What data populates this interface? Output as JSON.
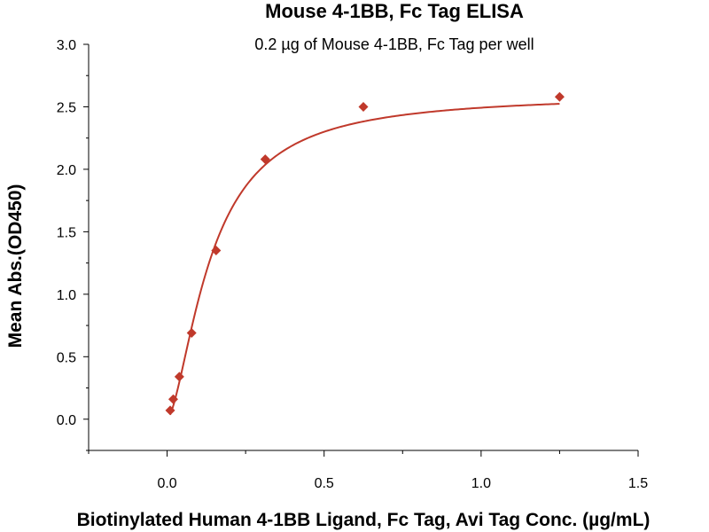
{
  "chart_data": {
    "type": "scatter",
    "title": "Mouse 4-1BB, Fc Tag ELISA",
    "subtitle": "0.2 µg of Mouse 4-1BB, Fc Tag per well",
    "xlabel": "Biotinylated Human 4-1BB Ligand, Fc Tag, Avi Tag Conc. (µg/mL)",
    "ylabel": "Mean Abs.(OD450)",
    "xlim": [
      -0.25,
      1.5
    ],
    "ylim": [
      -0.25,
      3.0
    ],
    "x_ticks": [
      0.0,
      0.5,
      1.0,
      1.5
    ],
    "x_tick_labels": [
      "0.0",
      "0.5",
      "1.0",
      "1.5"
    ],
    "y_ticks": [
      0.0,
      0.5,
      1.0,
      1.5,
      2.0,
      2.5,
      3.0
    ],
    "y_tick_labels": [
      "0.0",
      "0.5",
      "1.0",
      "1.5",
      "2.0",
      "2.5",
      "3.0"
    ],
    "grid": false,
    "legend": "none",
    "color": "#c0392b",
    "series": [
      {
        "marker": "diamond",
        "x": [
          0.0098,
          0.0195,
          0.039,
          0.078,
          0.156,
          0.3125,
          0.625,
          1.25
        ],
        "y": [
          0.07,
          0.16,
          0.34,
          0.69,
          1.35,
          2.08,
          2.5,
          2.58
        ]
      }
    ],
    "fit": {
      "type": "4PL",
      "bottom": 0.0,
      "top": 2.6,
      "ec50": 0.14,
      "hill": 1.6
    }
  }
}
